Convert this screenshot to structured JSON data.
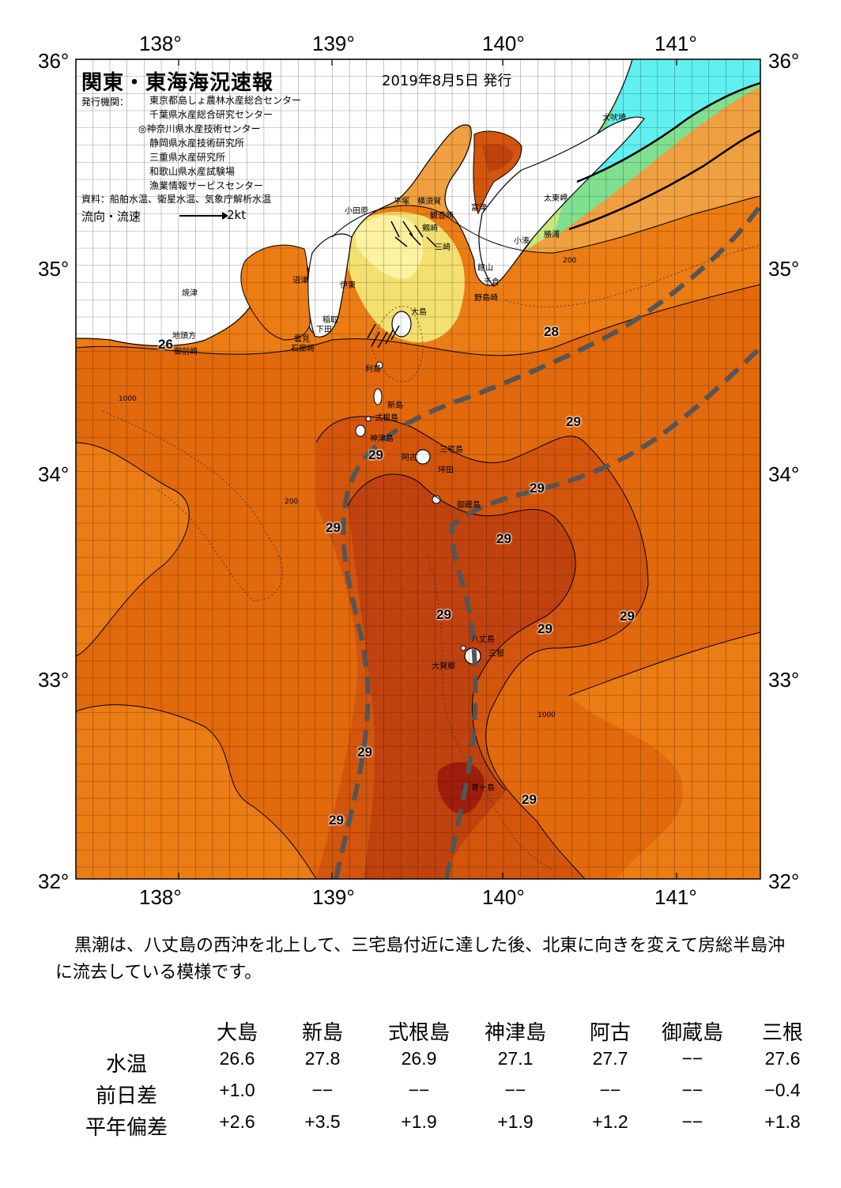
{
  "title": "関東・東海海況速報",
  "date": "2019年8月5日 発行",
  "issuer_label": "発行機関：",
  "issuers": [
    "東京都島しょ農林水産総合センター",
    "千葉県水産総合研究センター",
    "◎神奈川県水産技術センター",
    "静岡県水産技術研究所",
    "三重県水産研究所",
    "和歌山県水産試験場",
    "漁業情報サービスセンター"
  ],
  "sources": "資料：船舶水温、衛星水温、気象庁解析水温",
  "legend": {
    "label": "流向・流速",
    "speed": "2kt"
  },
  "axes": {
    "lon_ticks": [
      "138°",
      "139°",
      "140°",
      "141°"
    ],
    "lat_ticks": [
      "36°",
      "35°",
      "34°",
      "33°",
      "32°"
    ]
  },
  "place_names": {
    "inubosaki": "犬吠埼",
    "taitomisaki": "太東岬",
    "katsuura": "勝浦",
    "kominato": "小湊",
    "futtsu": "富津",
    "yokosuka": "横須賀",
    "hiratsuka": "平塚",
    "odawara": "小田原",
    "kannonzaki": "観音崎",
    "tsurugisaki": "剱崎",
    "miura": "三崎",
    "tateyama": "館山",
    "chikura": "千倉",
    "nojimazaki": "野島崎",
    "numazu": "沼津",
    "ito": "伊東",
    "inatori": "稲取",
    "shimoda": "下田",
    "kumomi": "雲見",
    "irozaki": "石廊崎",
    "yaizu": "焼津",
    "jitokata": "地頭方",
    "omaezaki": "御前崎",
    "oshima": "大島",
    "toshima": "利島",
    "niijima": "新島",
    "shikinejima": "式根島",
    "kozushima": "神津島",
    "miyakejima": "三宅島",
    "ako": "阿古",
    "tsubota": "坪田",
    "mikurajima": "御蔵島",
    "hachijojima": "八丈島",
    "mitsune": "三根",
    "okago": "大賀郷",
    "aogashima": "青ヶ島"
  },
  "isotherm_labels": [
    "28",
    "29",
    "29",
    "29",
    "29",
    "29",
    "29",
    "29",
    "29",
    "29",
    "29",
    "29",
    "26"
  ],
  "depth_labels": [
    "1000",
    "200"
  ],
  "comment": "黒潮は、八丈島の西沖を北上して、三宅島付近に達した後、北東に向きを変えて房総半島沖に流去している模様です。",
  "table": {
    "columns": [
      "大島",
      "新島",
      "式根島",
      "神津島",
      "阿古",
      "御蔵島",
      "三根"
    ],
    "rows": [
      {
        "label": "水温",
        "values": [
          "26.6",
          "27.8",
          "26.9",
          "27.1",
          "27.7",
          "−−",
          "27.6"
        ]
      },
      {
        "label": "前日差",
        "values": [
          "+1.0",
          "−−",
          "−−",
          "−−",
          "−−",
          "−−",
          "−0.4"
        ]
      },
      {
        "label": "平年偏差",
        "values": [
          "+2.6",
          "+3.5",
          "+1.9",
          "+1.9",
          "+1.2",
          "−−",
          "+1.8"
        ]
      }
    ]
  },
  "colors": {
    "warm_core": "#c0420e",
    "warm": "#d4550c",
    "mid": "#e2690c",
    "orange": "#ec7c14",
    "light_orange": "#f0a040",
    "yellow": "#f4e070",
    "pale_yellow": "#fcf2a0",
    "green_yellow": "#c8e880",
    "green": "#80e090",
    "cyan": "#60f0f0",
    "hot": "#a01c0c",
    "kuroshio_axis": "#555555"
  }
}
